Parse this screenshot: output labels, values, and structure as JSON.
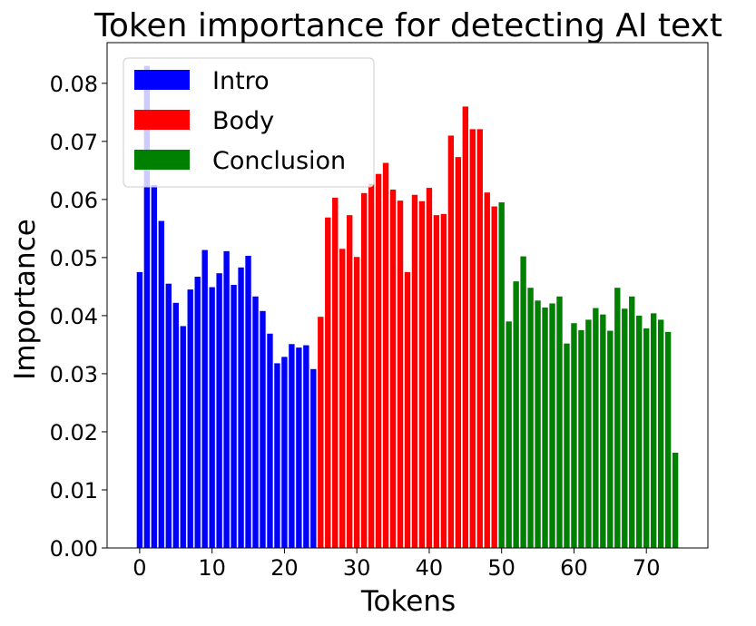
{
  "chart_data": {
    "type": "bar",
    "title": "Token importance for detecting AI text",
    "xlabel": "Tokens",
    "ylabel": "Importance",
    "xlim": [
      -4.5,
      78.5
    ],
    "ylim": [
      0,
      0.087
    ],
    "xticks": [
      0,
      10,
      20,
      30,
      40,
      50,
      60,
      70
    ],
    "xtick_labels": [
      "0",
      "10",
      "20",
      "30",
      "40",
      "50",
      "60",
      "70"
    ],
    "yticks": [
      0,
      0.01,
      0.02,
      0.03,
      0.04,
      0.05,
      0.06,
      0.07,
      0.08
    ],
    "ytick_labels": [
      "0.00",
      "0.01",
      "0.02",
      "0.03",
      "0.04",
      "0.05",
      "0.06",
      "0.07",
      "0.08"
    ],
    "grid": false,
    "legend_position": "top-left",
    "series": [
      {
        "name": "Intro",
        "color": "#0000ff",
        "x": [
          0,
          1,
          2,
          3,
          4,
          5,
          6,
          7,
          8,
          9,
          10,
          11,
          12,
          13,
          14,
          15,
          16,
          17,
          18,
          19,
          20,
          21,
          22,
          23,
          24
        ],
        "values": [
          0.0475,
          0.083,
          0.0625,
          0.0563,
          0.0455,
          0.0422,
          0.0382,
          0.0445,
          0.0467,
          0.0513,
          0.0449,
          0.0473,
          0.0511,
          0.0453,
          0.0483,
          0.0503,
          0.0433,
          0.0408,
          0.0369,
          0.0318,
          0.0329,
          0.0351,
          0.0345,
          0.0349,
          0.0308
        ]
      },
      {
        "name": "Body",
        "color": "#ff0000",
        "x": [
          25,
          26,
          27,
          28,
          29,
          30,
          31,
          32,
          33,
          34,
          35,
          36,
          37,
          38,
          39,
          40,
          41,
          42,
          43,
          44,
          45,
          46,
          47,
          48,
          49
        ],
        "values": [
          0.0398,
          0.0569,
          0.0603,
          0.0515,
          0.0573,
          0.0501,
          0.0611,
          0.0627,
          0.0644,
          0.0663,
          0.0617,
          0.0598,
          0.0475,
          0.0608,
          0.0597,
          0.062,
          0.0573,
          0.0575,
          0.071,
          0.0673,
          0.076,
          0.0721,
          0.0721,
          0.0612,
          0.0588
        ]
      },
      {
        "name": "Conclusion",
        "color": "#008000",
        "x": [
          50,
          51,
          52,
          53,
          54,
          55,
          56,
          57,
          58,
          59,
          60,
          61,
          62,
          63,
          64,
          65,
          66,
          67,
          68,
          69,
          70,
          71,
          72,
          73,
          74
        ],
        "values": [
          0.0595,
          0.039,
          0.0459,
          0.0502,
          0.0448,
          0.0426,
          0.0414,
          0.0421,
          0.0433,
          0.0352,
          0.0387,
          0.0375,
          0.0393,
          0.0413,
          0.0402,
          0.0374,
          0.0448,
          0.0412,
          0.0433,
          0.04,
          0.0378,
          0.0404,
          0.0393,
          0.0372,
          0.0164
        ]
      }
    ]
  }
}
